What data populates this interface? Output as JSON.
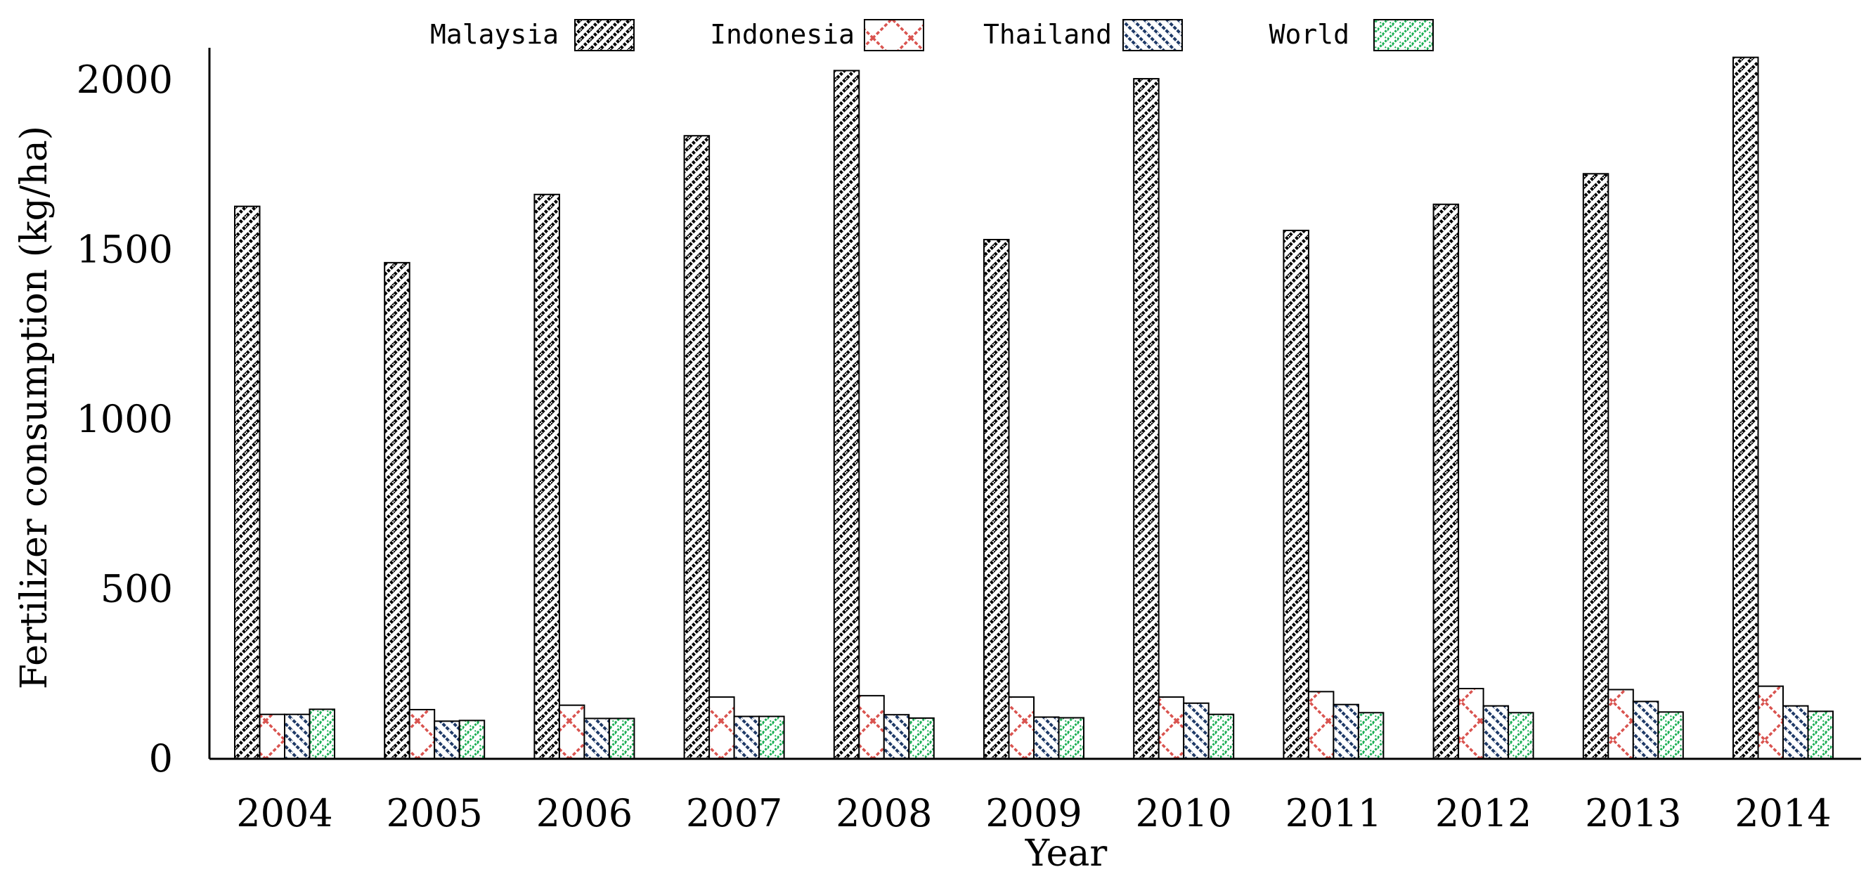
{
  "chart_data": {
    "type": "bar",
    "title": "",
    "xlabel": "Year",
    "ylabel": "Fertilizer consumption (kg/ha)",
    "ylim": [
      0,
      2100
    ],
    "yticks": [
      0,
      500,
      1000,
      1500,
      2000
    ],
    "grid": false,
    "legend_position": "top",
    "categories": [
      "2004",
      "2005",
      "2006",
      "2007",
      "2008",
      "2009",
      "2010",
      "2011",
      "2012",
      "2013",
      "2014"
    ],
    "series": [
      {
        "name": "Malaysia",
        "color": "#000000",
        "pattern": "diagonal-black",
        "values": [
          1628,
          1462,
          1663,
          1836,
          2028,
          1530,
          2004,
          1557,
          1634,
          1724,
          2067
        ]
      },
      {
        "name": "Indonesia",
        "color": "#d9534f",
        "pattern": "crosshatch-red",
        "values": [
          131,
          145,
          158,
          182,
          186,
          182,
          182,
          198,
          207,
          204,
          214
        ]
      },
      {
        "name": "Thailand",
        "color": "#1f3a68",
        "pattern": "diagonal-blue",
        "values": [
          131,
          111,
          119,
          125,
          130,
          123,
          164,
          160,
          156,
          169,
          156
        ]
      },
      {
        "name": "World",
        "color": "#1aaf54",
        "pattern": "crosshatch-green",
        "values": [
          146,
          113,
          119,
          125,
          120,
          121,
          131,
          136,
          136,
          138,
          140
        ]
      }
    ]
  }
}
